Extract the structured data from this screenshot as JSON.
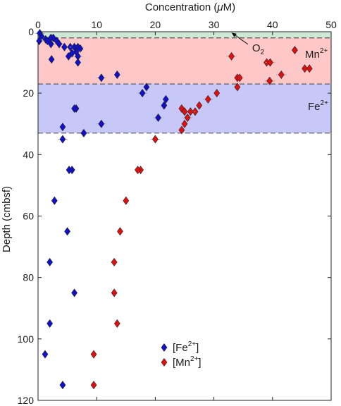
{
  "chart_data": {
    "type": "scatter",
    "xlabel_prefix": "Concentration (",
    "xlabel_mu": "μ",
    "xlabel_suffix": "M)",
    "ylabel": "Depth (cmbsf)",
    "xlim": [
      0,
      50
    ],
    "ylim": [
      0,
      120
    ],
    "x_axis_position": "top",
    "y_reversed": true,
    "grid": false,
    "x_ticks": [
      "0",
      "10",
      "20",
      "30",
      "40",
      "50"
    ],
    "y_ticks": [
      "0",
      "20",
      "40",
      "60",
      "80",
      "100",
      "120"
    ],
    "zones": [
      {
        "label_base": "",
        "label_sup": "",
        "top": 0,
        "bottom": 2,
        "color": "#cfe8d6"
      },
      {
        "label_base": "Mn",
        "label_sup": "2+",
        "top": 2,
        "bottom": 17,
        "color": "#ffc8c8"
      },
      {
        "label_base": "Fe",
        "label_sup": "2+",
        "top": 17,
        "bottom": 33,
        "color": "#c8c8f8"
      }
    ],
    "zone_boundaries": [
      2,
      17,
      33
    ],
    "annotation": {
      "base": "O",
      "sub": "2",
      "target_x": 33,
      "target_y": 0.3,
      "label_x": 37,
      "label_y": 5
    },
    "series": [
      {
        "name_base": "[Fe",
        "name_sup": "2+",
        "name_end": "]",
        "color": "#1010c8",
        "points": [
          [
            0.3,
            0.5
          ],
          [
            0.6,
            1.5
          ],
          [
            0.2,
            3
          ],
          [
            1.3,
            2.5
          ],
          [
            2.2,
            2
          ],
          [
            2.6,
            2
          ],
          [
            1.6,
            3
          ],
          [
            3.2,
            3
          ],
          [
            2.2,
            4
          ],
          [
            3.6,
            4
          ],
          [
            4.5,
            5
          ],
          [
            5.5,
            5
          ],
          [
            6.2,
            5
          ],
          [
            6.8,
            5
          ],
          [
            7.2,
            5.5
          ],
          [
            6.5,
            6.5
          ],
          [
            5.8,
            7
          ],
          [
            5.2,
            8
          ],
          [
            6.8,
            8
          ],
          [
            2.3,
            9
          ],
          [
            6.8,
            10
          ],
          [
            10.8,
            15
          ],
          [
            13.5,
            14
          ],
          [
            18.5,
            18
          ],
          [
            17.8,
            20
          ],
          [
            21.8,
            22
          ],
          [
            21.5,
            24
          ],
          [
            20.5,
            28
          ],
          [
            6.5,
            25
          ],
          [
            6.2,
            25
          ],
          [
            10.8,
            30
          ],
          [
            4.2,
            31
          ],
          [
            7.8,
            33
          ],
          [
            4.2,
            35
          ],
          [
            5.8,
            45
          ],
          [
            5.3,
            45
          ],
          [
            2.8,
            55
          ],
          [
            5.0,
            65
          ],
          [
            2.0,
            75
          ],
          [
            6.2,
            85
          ],
          [
            2.0,
            95
          ],
          [
            1.2,
            105
          ],
          [
            4.2,
            115
          ]
        ]
      },
      {
        "name_base": "[Mn",
        "name_sup": "2+",
        "name_end": "]",
        "color": "#e01010",
        "points": [
          [
            33,
            8
          ],
          [
            43.8,
            6
          ],
          [
            39,
            10
          ],
          [
            39.6,
            10
          ],
          [
            34,
            15
          ],
          [
            34.4,
            15
          ],
          [
            41.5,
            14
          ],
          [
            45.5,
            12
          ],
          [
            46.3,
            12
          ],
          [
            39.5,
            16
          ],
          [
            34,
            18
          ],
          [
            30.5,
            20
          ],
          [
            29,
            22
          ],
          [
            27.5,
            24
          ],
          [
            26.8,
            26
          ],
          [
            26,
            26
          ],
          [
            24.5,
            25
          ],
          [
            25,
            26
          ],
          [
            25.5,
            28
          ],
          [
            25,
            30
          ],
          [
            24.5,
            32
          ],
          [
            20,
            35
          ],
          [
            17.5,
            45
          ],
          [
            17,
            45
          ],
          [
            15,
            55
          ],
          [
            14,
            65
          ],
          [
            13,
            75
          ],
          [
            13,
            85
          ],
          [
            13.5,
            95
          ],
          [
            9.5,
            105
          ],
          [
            9.5,
            115
          ]
        ]
      }
    ]
  }
}
